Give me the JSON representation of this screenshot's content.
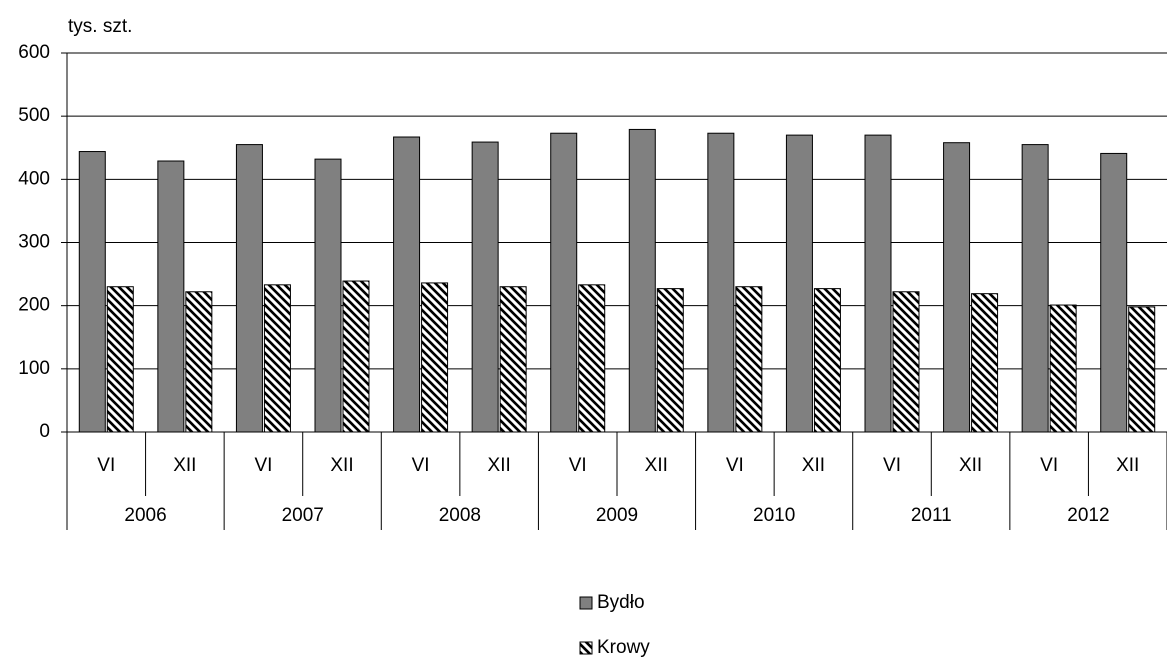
{
  "chart_data": {
    "type": "bar",
    "y_label": "tys. szt.",
    "categories": [
      "VI",
      "XII",
      "VI",
      "XII",
      "VI",
      "XII",
      "VI",
      "XII",
      "VI",
      "XII",
      "VI",
      "XII",
      "VI",
      "XII"
    ],
    "category_groups": [
      "2006",
      "2007",
      "2008",
      "2009",
      "2010",
      "2011",
      "2012"
    ],
    "series": [
      {
        "name": "Bydło",
        "color": "#808080",
        "hatch": false,
        "values": [
          444,
          429,
          455,
          432,
          467,
          459,
          473,
          479,
          473,
          470,
          470,
          458,
          455,
          441
        ]
      },
      {
        "name": "Krowy",
        "color": "#000000",
        "hatch": true,
        "values": [
          230,
          222,
          233,
          239,
          236,
          230,
          233,
          227,
          230,
          227,
          222,
          219,
          201,
          198
        ]
      }
    ],
    "ylim": [
      0,
      600
    ],
    "yticks": [
      0,
      100,
      200,
      300,
      400,
      500,
      600
    ],
    "grid": true,
    "legend": "bottom"
  }
}
